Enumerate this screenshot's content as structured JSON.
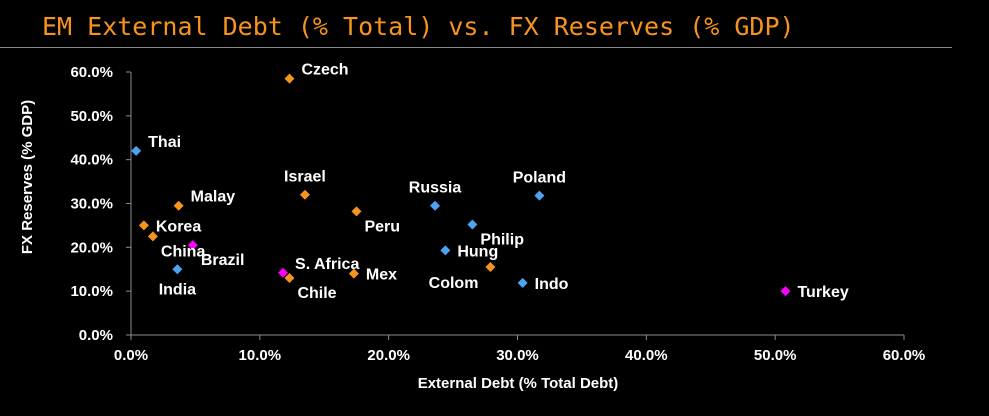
{
  "title": "EM External Debt (% Total) vs. FX Reserves (% GDP)",
  "chart_data": {
    "type": "scatter",
    "title": "EM External Debt (% Total) vs. FX Reserves (% GDP)",
    "xlabel": "External Debt (% Total Debt)",
    "ylabel": "FX Reserves (% GDP)",
    "xlim": [
      0,
      60
    ],
    "ylim": [
      0,
      60
    ],
    "x_ticks": [
      "0.0%",
      "10.0%",
      "20.0%",
      "30.0%",
      "40.0%",
      "50.0%",
      "60.0%"
    ],
    "y_ticks": [
      "0.0%",
      "10.0%",
      "20.0%",
      "30.0%",
      "40.0%",
      "50.0%",
      "60.0%"
    ],
    "grid": false,
    "colors": {
      "blue": "#4DA3F0",
      "orange": "#F7941D",
      "magenta": "#FF00FF"
    },
    "points": [
      {
        "label": "Czech",
        "x": 12.3,
        "y": 58.5,
        "color": "orange",
        "label_pos": "above-right"
      },
      {
        "label": "Thai",
        "x": 0.4,
        "y": 42.0,
        "color": "blue",
        "label_pos": "above-right"
      },
      {
        "label": "Israel",
        "x": 13.5,
        "y": 32.0,
        "color": "orange",
        "label_pos": "above"
      },
      {
        "label": "Malay",
        "x": 3.7,
        "y": 29.5,
        "color": "orange",
        "label_pos": "above-right"
      },
      {
        "label": "Russia",
        "x": 23.6,
        "y": 29.5,
        "color": "blue",
        "label_pos": "above"
      },
      {
        "label": "Poland",
        "x": 31.7,
        "y": 31.8,
        "color": "blue",
        "label_pos": "above"
      },
      {
        "label": "Peru",
        "x": 17.5,
        "y": 28.2,
        "color": "orange",
        "label_pos": "below-right"
      },
      {
        "label": "Philip",
        "x": 26.5,
        "y": 25.2,
        "color": "blue",
        "label_pos": "below-right"
      },
      {
        "label": "Korea",
        "x": 1.0,
        "y": 25.0,
        "color": "orange",
        "label_pos": "right"
      },
      {
        "label": "China",
        "x": 1.7,
        "y": 22.5,
        "color": "orange",
        "label_pos": "below-right"
      },
      {
        "label": "Brazil",
        "x": 4.8,
        "y": 20.5,
        "color": "magenta",
        "label_pos": "below-right"
      },
      {
        "label": "Hung",
        "x": 24.4,
        "y": 19.3,
        "color": "blue",
        "label_pos": "right"
      },
      {
        "label": "S. Africa",
        "x": 11.8,
        "y": 14.2,
        "color": "magenta",
        "label_pos": "above-right"
      },
      {
        "label": "Chile",
        "x": 12.3,
        "y": 13.0,
        "color": "orange",
        "label_pos": "below-right"
      },
      {
        "label": "India",
        "x": 3.6,
        "y": 15.0,
        "color": "blue",
        "label_pos": "below"
      },
      {
        "label": "Mex",
        "x": 17.3,
        "y": 14.0,
        "color": "orange",
        "label_pos": "right"
      },
      {
        "label": "Colom",
        "x": 27.9,
        "y": 15.5,
        "color": "orange",
        "label_pos": "below-left"
      },
      {
        "label": "Indo",
        "x": 30.4,
        "y": 11.9,
        "color": "blue",
        "label_pos": "right"
      },
      {
        "label": "Turkey",
        "x": 50.8,
        "y": 10.0,
        "color": "magenta",
        "label_pos": "right"
      }
    ]
  }
}
